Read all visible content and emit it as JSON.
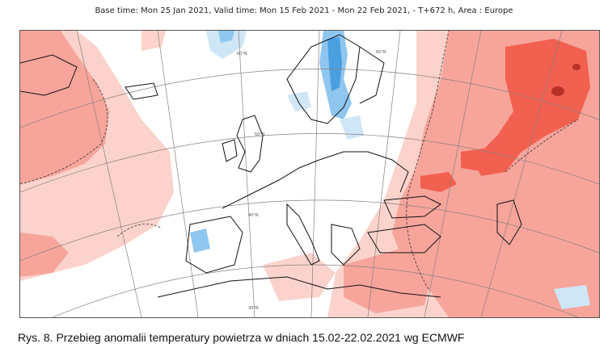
{
  "header": {
    "title": "Base time: Mon 25 Jan 2021, Valid time: Mon 15 Feb 2021 - Mon 22 Feb 2021, - T+672 h, Area : Europe"
  },
  "caption": {
    "text": "Rys. 8. Przebieg anomalii temperatury powietrza w dniach 15.02-22.02.2021 wg ECMWF"
  },
  "map": {
    "grid_labels": [
      "60°N",
      "60°N",
      "50°N",
      "40°N",
      "30°N"
    ],
    "colors": {
      "warm_light": "#fbd3cc",
      "warm_medium": "#f7a59b",
      "warm_strong": "#f2604f",
      "warm_extreme": "#b8322a",
      "cold_light": "#cfe6f7",
      "cold_medium": "#8fc6ef",
      "cold_strong": "#4a9fe0",
      "coast": "#111111",
      "grid": "#8a7f7f"
    }
  }
}
